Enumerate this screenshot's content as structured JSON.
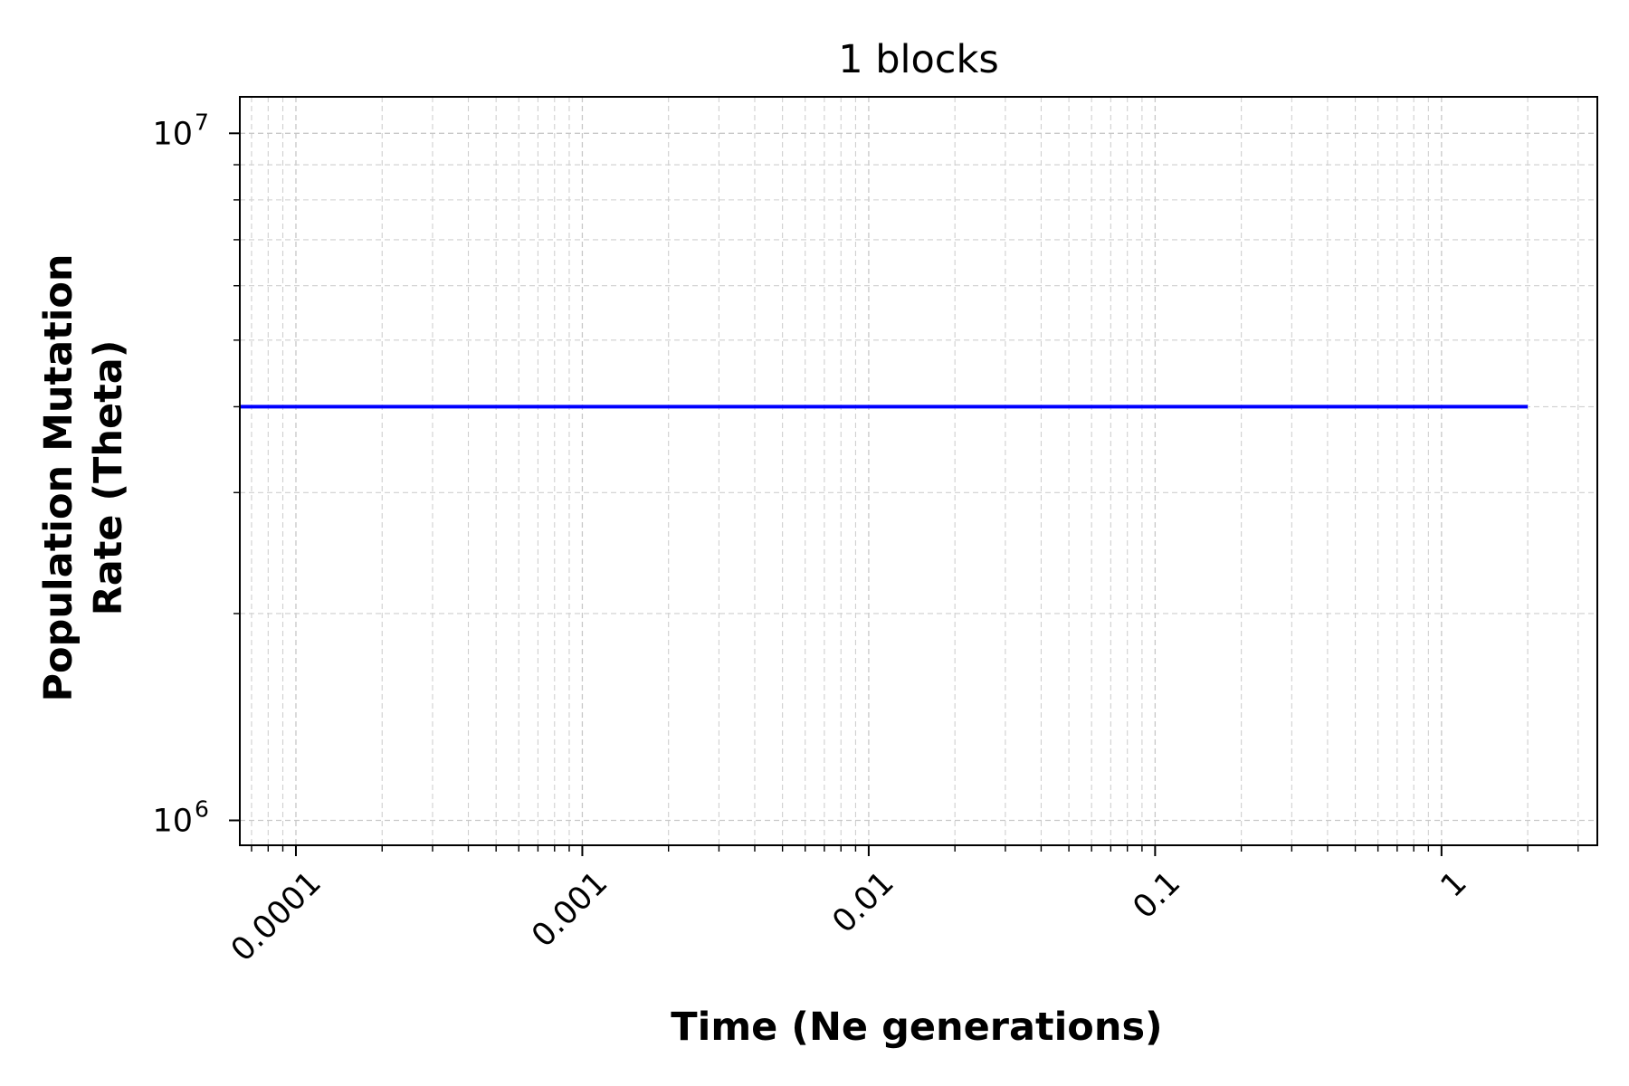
{
  "chart_data": {
    "type": "line",
    "title": "1 blocks",
    "xlabel": "Time (Ne generations)",
    "ylabel_lines": [
      "Population Mutation",
      "Rate (Theta)"
    ],
    "x_scale": "log",
    "y_scale": "log",
    "xlim": [
      6.37e-05,
      3.5
    ],
    "ylim": [
      920000,
      11300000
    ],
    "x_major_ticks": [
      0.0001,
      0.001,
      0.01,
      0.1,
      1
    ],
    "x_tick_labels": [
      "0.0001",
      "0.001",
      "0.01",
      "0.1",
      "1"
    ],
    "y_major_ticks": [
      {
        "value": 1000000,
        "base": "10",
        "exp": "6"
      },
      {
        "value": 10000000,
        "base": "10",
        "exp": "7"
      }
    ],
    "grid": true,
    "series": [
      {
        "color": "#0000ff",
        "x": [
          6.37e-05,
          2.0
        ],
        "y": [
          4000000,
          4000000
        ]
      }
    ]
  }
}
